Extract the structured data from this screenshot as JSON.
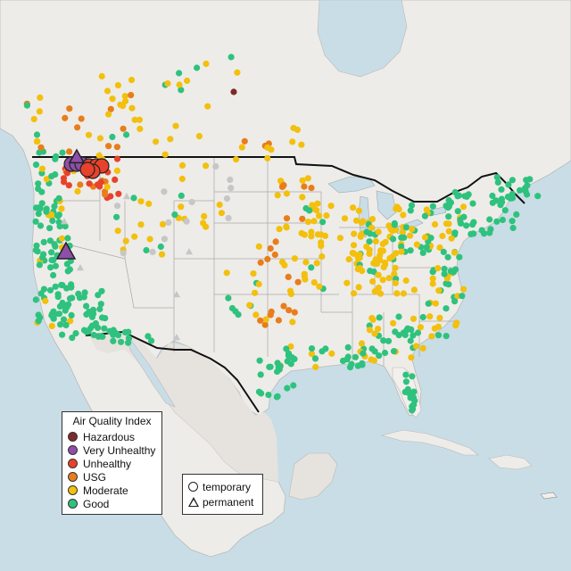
{
  "legend": {
    "title": "Air Quality Index",
    "categories": [
      {
        "label": "Hazardous",
        "color": "#7e2a2a"
      },
      {
        "label": "Very Unhealthy",
        "color": "#8e4fa8"
      },
      {
        "label": "Unhealthy",
        "color": "#e8412c"
      },
      {
        "label": "USG",
        "color": "#e87d1c"
      },
      {
        "label": "Moderate",
        "color": "#f2c00d"
      },
      {
        "label": "Good",
        "color": "#2ec27e"
      }
    ]
  },
  "type_legend": {
    "items": [
      {
        "label": "temporary",
        "shape": "circle"
      },
      {
        "label": "permanent",
        "shape": "triangle"
      }
    ]
  },
  "colors": {
    "water": "#c9dde6",
    "land": "#eeece8",
    "us_land": "#f2f0ec",
    "unknown": "#c6c6c6"
  }
}
